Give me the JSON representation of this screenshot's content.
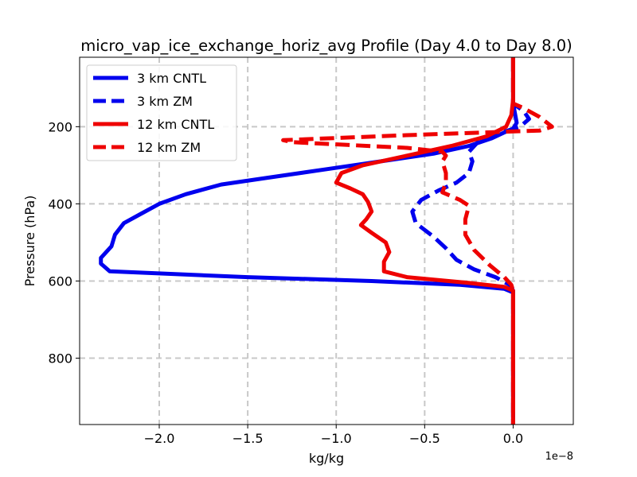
{
  "chart_data": {
    "type": "line",
    "title": "micro_vap_ice_exchange_horiz_avg Profile (Day 4.0 to Day 8.0)",
    "xlabel": "kg/kg",
    "ylabel": "Pressure (hPa)",
    "x_offset_label": "1e−8",
    "x_scale": 1e-08,
    "xlim": [
      -2.45,
      0.34
    ],
    "ylim": [
      972,
      20
    ],
    "y_inverted": true,
    "grid": true,
    "legend_location": "upper left",
    "x_ticks": [
      {
        "value": -2.0,
        "label": "−2.0"
      },
      {
        "value": -1.5,
        "label": "−1.5"
      },
      {
        "value": -1.0,
        "label": "−1.0"
      },
      {
        "value": -0.5,
        "label": "−0.5"
      },
      {
        "value": 0.0,
        "label": "0.0"
      }
    ],
    "y_ticks": [
      {
        "value": 200,
        "label": "200"
      },
      {
        "value": 400,
        "label": "400"
      },
      {
        "value": 600,
        "label": "600"
      },
      {
        "value": 800,
        "label": "800"
      }
    ],
    "series": [
      {
        "name": "3 km CNTL",
        "color": "#0000ee",
        "dashed": false,
        "points": [
          [
            0.0,
            20
          ],
          [
            0.0,
            140
          ],
          [
            0.01,
            165
          ],
          [
            0.02,
            190
          ],
          [
            0.0,
            205
          ],
          [
            -0.05,
            215
          ],
          [
            -0.12,
            230
          ],
          [
            -0.25,
            250
          ],
          [
            -0.45,
            270
          ],
          [
            -0.75,
            290
          ],
          [
            -1.05,
            310
          ],
          [
            -1.35,
            330
          ],
          [
            -1.65,
            350
          ],
          [
            -1.85,
            375
          ],
          [
            -2.0,
            400
          ],
          [
            -2.1,
            425
          ],
          [
            -2.2,
            450
          ],
          [
            -2.25,
            480
          ],
          [
            -2.27,
            510
          ],
          [
            -2.33,
            540
          ],
          [
            -2.33,
            555
          ],
          [
            -2.28,
            575
          ],
          [
            -1.5,
            590
          ],
          [
            -0.8,
            600
          ],
          [
            -0.3,
            610
          ],
          [
            -0.05,
            620
          ],
          [
            0.0,
            630
          ],
          [
            0.0,
            972
          ]
        ]
      },
      {
        "name": "3 km ZM",
        "color": "#0000ee",
        "dashed": true,
        "points": [
          [
            0.0,
            20
          ],
          [
            0.0,
            140
          ],
          [
            0.06,
            160
          ],
          [
            0.09,
            180
          ],
          [
            0.04,
            200
          ],
          [
            -0.1,
            220
          ],
          [
            -0.2,
            240
          ],
          [
            -0.25,
            265
          ],
          [
            -0.23,
            290
          ],
          [
            -0.25,
            320
          ],
          [
            -0.32,
            345
          ],
          [
            -0.42,
            365
          ],
          [
            -0.52,
            390
          ],
          [
            -0.57,
            420
          ],
          [
            -0.55,
            450
          ],
          [
            -0.45,
            485
          ],
          [
            -0.38,
            515
          ],
          [
            -0.32,
            545
          ],
          [
            -0.22,
            570
          ],
          [
            -0.1,
            590
          ],
          [
            -0.02,
            610
          ],
          [
            0.0,
            625
          ],
          [
            0.0,
            972
          ]
        ]
      },
      {
        "name": "12 km CNTL",
        "color": "#ee0000",
        "dashed": false,
        "points": [
          [
            0.0,
            20
          ],
          [
            0.0,
            130
          ],
          [
            -0.01,
            170
          ],
          [
            -0.04,
            200
          ],
          [
            -0.15,
            225
          ],
          [
            -0.35,
            250
          ],
          [
            -0.6,
            275
          ],
          [
            -0.85,
            300
          ],
          [
            -0.97,
            320
          ],
          [
            -1.0,
            345
          ],
          [
            -0.92,
            360
          ],
          [
            -0.85,
            375
          ],
          [
            -0.82,
            395
          ],
          [
            -0.8,
            420
          ],
          [
            -0.83,
            440
          ],
          [
            -0.86,
            455
          ],
          [
            -0.8,
            475
          ],
          [
            -0.72,
            500
          ],
          [
            -0.7,
            525
          ],
          [
            -0.73,
            550
          ],
          [
            -0.73,
            575
          ],
          [
            -0.6,
            590
          ],
          [
            -0.25,
            605
          ],
          [
            -0.05,
            615
          ],
          [
            0.0,
            625
          ],
          [
            0.0,
            972
          ]
        ]
      },
      {
        "name": "12 km ZM",
        "color": "#ee0000",
        "dashed": true,
        "points": [
          [
            0.0,
            20
          ],
          [
            0.0,
            140
          ],
          [
            0.05,
            150
          ],
          [
            0.15,
            175
          ],
          [
            0.22,
            200
          ],
          [
            0.15,
            210
          ],
          [
            -0.6,
            222
          ],
          [
            -1.3,
            235
          ],
          [
            -1.25,
            240
          ],
          [
            -0.6,
            255
          ],
          [
            -0.4,
            265
          ],
          [
            -0.38,
            275
          ],
          [
            -0.4,
            290
          ],
          [
            -0.38,
            320
          ],
          [
            -0.38,
            345
          ],
          [
            -0.4,
            370
          ],
          [
            -0.3,
            390
          ],
          [
            -0.25,
            405
          ],
          [
            -0.27,
            440
          ],
          [
            -0.27,
            480
          ],
          [
            -0.22,
            520
          ],
          [
            -0.13,
            560
          ],
          [
            -0.05,
            590
          ],
          [
            -0.01,
            610
          ],
          [
            0.0,
            625
          ],
          [
            0.0,
            972
          ]
        ]
      }
    ]
  }
}
